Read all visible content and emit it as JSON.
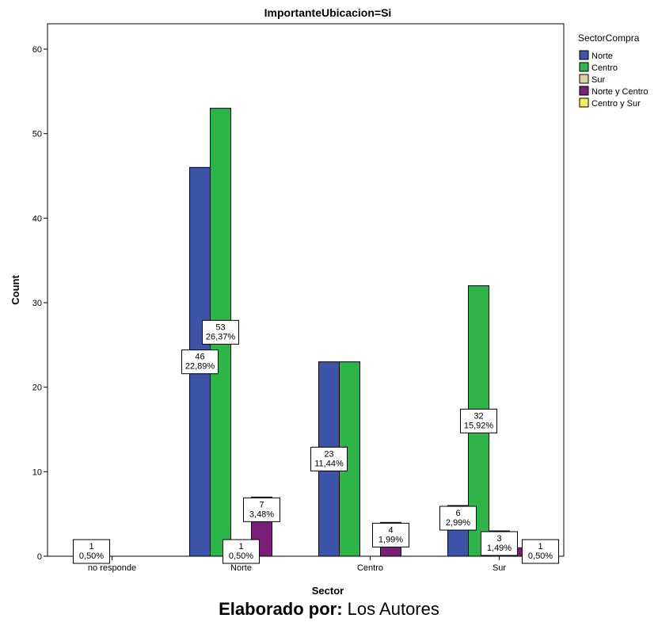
{
  "chart_data": {
    "type": "bar",
    "title": "ImportanteUbicacion=Si",
    "xlabel": "Sector",
    "ylabel": "Count",
    "ylim": [
      0,
      63
    ],
    "yticks": [
      0,
      10,
      20,
      30,
      40,
      50,
      60
    ],
    "categories": [
      "no responde",
      "Norte",
      "Centro",
      "Sur"
    ],
    "legend_title": "SectorCompra",
    "legend_position": "top-right",
    "grid": false,
    "series": [
      {
        "name": "Norte",
        "color": "#3d55a8",
        "values": [
          0,
          46,
          23,
          6
        ],
        "labels": [
          "",
          "46\n22,89%",
          "23\n11,44%",
          "6\n2,99%"
        ]
      },
      {
        "name": "Centro",
        "color": "#2db54a",
        "values": [
          1,
          53,
          23,
          32
        ],
        "labels": [
          "1\n0,50%",
          "53\n26,37%",
          "",
          "32\n15,92%"
        ]
      },
      {
        "name": "Sur",
        "color": "#d8d3a6",
        "values": [
          0,
          1,
          0,
          3
        ],
        "labels": [
          "",
          "1\n0,50%",
          "",
          "3\n1,49%"
        ]
      },
      {
        "name": "Norte y Centro",
        "color": "#7a1e78",
        "values": [
          0,
          7,
          4,
          1
        ],
        "labels": [
          "",
          "7\n3,48%",
          "4\n1,99%",
          ""
        ]
      },
      {
        "name": "Centro y Sur",
        "color": "#f2ef5e",
        "values": [
          0,
          0,
          0,
          1
        ],
        "labels": [
          "",
          "",
          "",
          "1\n0,50%"
        ]
      }
    ]
  },
  "footer": {
    "bold": "Elaborado por:",
    "text": " Los Autores"
  }
}
